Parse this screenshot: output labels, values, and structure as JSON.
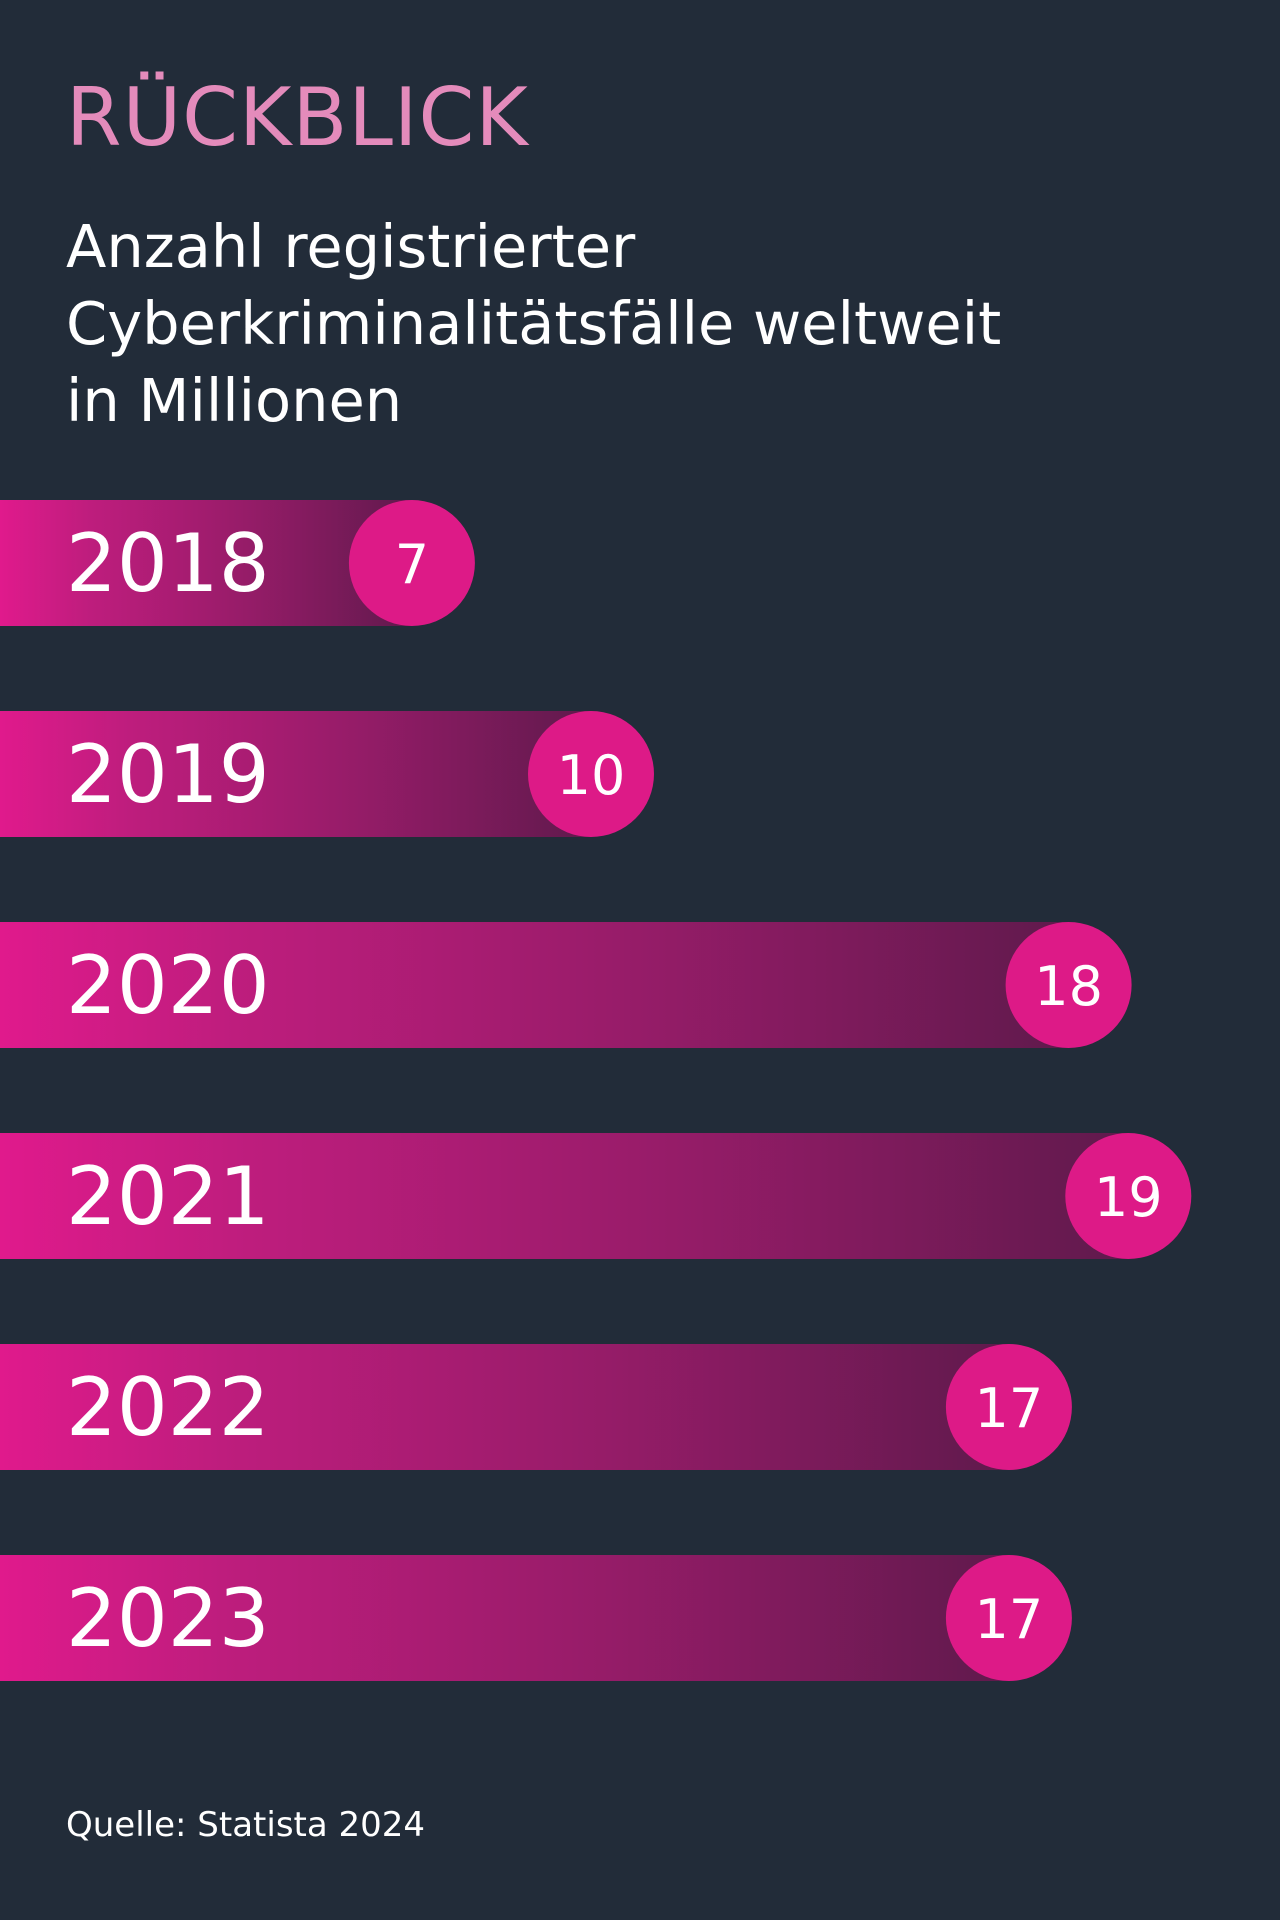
{
  "header": {
    "kicker": "RÜCKBLICK",
    "subtitle": "Anzahl registrierter\nCyberkriminalitätsfälle weltweit\nin Millionen"
  },
  "chart_data": {
    "type": "bar",
    "orientation": "horizontal",
    "categories": [
      "2018",
      "2019",
      "2020",
      "2021",
      "2022",
      "2023"
    ],
    "values": [
      7,
      10,
      18,
      19,
      17,
      17
    ],
    "value_labels": [
      "7",
      "10",
      "18",
      "19",
      "17",
      "17"
    ],
    "grid": false,
    "legend": "none"
  },
  "footer": {
    "source": "Quelle: Statista 2024"
  },
  "colors": {
    "background": "#222c39",
    "kicker": "#e48bbb",
    "bar_start": "#e01a8c",
    "bar_end": "#5f1a4c",
    "badge": "#dd1a87",
    "text": "#ffffff"
  }
}
